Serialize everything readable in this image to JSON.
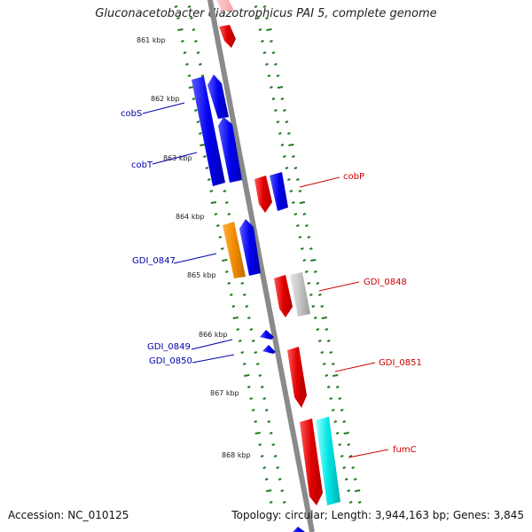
{
  "title": "Gluconacetobacter diazotrophicus PAI 5, complete genome",
  "accession": "Accession: NC_010125",
  "summary": "Topology: circular; Length: 3,944,163 bp; Genes: 3,845",
  "colors": {
    "backbone": "#8a8a8a",
    "ticks": "#1e7a1e",
    "forward_label": "#cc0000",
    "reverse_label": "#0000aa"
  },
  "kbp_labels": [
    "861 kbp",
    "862 kbp",
    "863 kbp",
    "864 kbp",
    "865 kbp",
    "866 kbp",
    "867 kbp",
    "868 kbp"
  ],
  "genes": [
    {
      "id": "cobS",
      "label": "cobS",
      "strand": "reverse",
      "color": "blue"
    },
    {
      "id": "cobT",
      "label": "cobT",
      "strand": "reverse",
      "color": "blue"
    },
    {
      "id": "cobP",
      "label": "cobP",
      "strand": "forward",
      "color": "red"
    },
    {
      "id": "GDI_0847",
      "label": "GDI_0847",
      "strand": "reverse",
      "color": "orange"
    },
    {
      "id": "GDI_0848",
      "label": "GDI_0848",
      "strand": "forward",
      "color": "grey"
    },
    {
      "id": "GDI_0849",
      "label": "GDI_0849",
      "strand": "reverse",
      "color": "blue"
    },
    {
      "id": "GDI_0850",
      "label": "GDI_0850",
      "strand": "reverse",
      "color": "blue"
    },
    {
      "id": "GDI_0851",
      "label": "GDI_0851",
      "strand": "forward",
      "color": "red"
    },
    {
      "id": "fumC",
      "label": "fumC",
      "strand": "forward",
      "color": "cyan"
    }
  ]
}
